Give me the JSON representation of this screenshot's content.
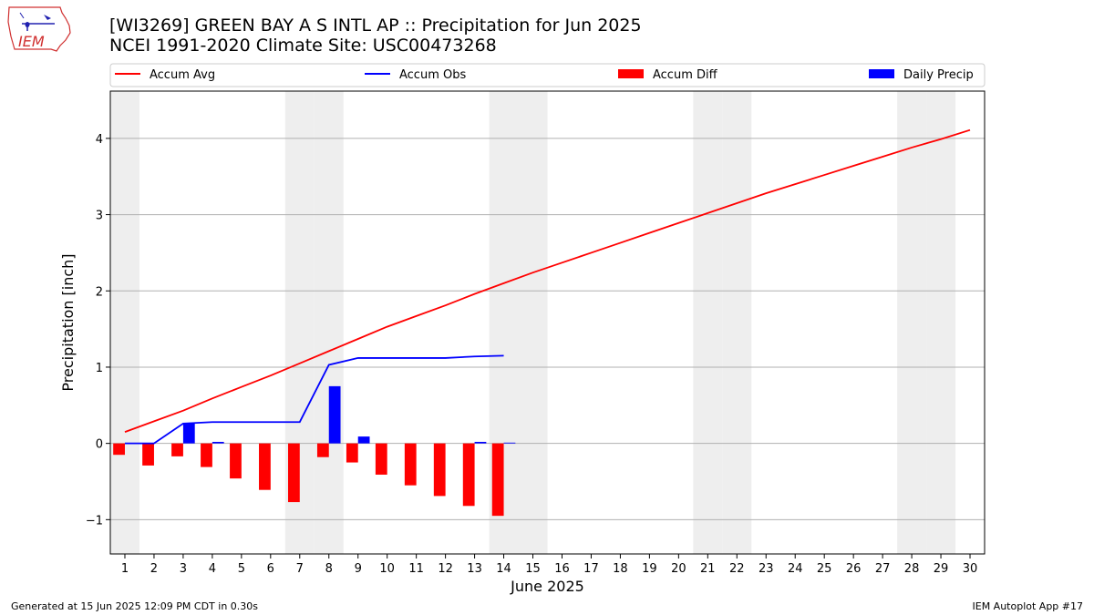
{
  "header": {
    "title_line1": "[WI3269] GREEN BAY A S INTL AP :: Precipitation for Jun 2025",
    "title_line2": "NCEI 1991-2020 Climate Site: USC00473268",
    "logo_text": "IEM"
  },
  "footer": {
    "left": "Generated at 15 Jun 2025 12:09 PM CDT in 0.30s",
    "right": "IEM Autoplot App #17"
  },
  "colors": {
    "accum_avg": "#ff0000",
    "accum_obs": "#0000ff",
    "accum_diff": "#ff0000",
    "daily_precip": "#0000ff",
    "weekend_shade": "#eeeeee",
    "grid": "#b0b0b0"
  },
  "chart_data": {
    "type": "line",
    "xlabel": "June 2025",
    "ylabel": "Precipitation [inch]",
    "xlim": [
      0.5,
      30.5
    ],
    "ylim": [
      -1.45,
      4.62
    ],
    "yticks": [
      -1,
      0,
      1,
      2,
      3,
      4
    ],
    "ytick_labels": [
      "−1",
      "0",
      "1",
      "2",
      "3",
      "4"
    ],
    "xticks": [
      1,
      2,
      3,
      4,
      5,
      6,
      7,
      8,
      9,
      10,
      11,
      12,
      13,
      14,
      15,
      16,
      17,
      18,
      19,
      20,
      21,
      22,
      23,
      24,
      25,
      26,
      27,
      28,
      29,
      30
    ],
    "grid": "horizontal",
    "legend_position": "top",
    "weekend_days": [
      1,
      7,
      8,
      14,
      15,
      21,
      22,
      28,
      29
    ],
    "series": [
      {
        "name": "Accum Avg",
        "kind": "line",
        "x": [
          1,
          2,
          3,
          4,
          5,
          6,
          7,
          8,
          9,
          10,
          11,
          12,
          13,
          14,
          15,
          16,
          17,
          18,
          19,
          20,
          21,
          22,
          23,
          24,
          25,
          26,
          27,
          28,
          29,
          30
        ],
        "values": [
          0.15,
          0.29,
          0.43,
          0.59,
          0.74,
          0.89,
          1.05,
          1.21,
          1.37,
          1.53,
          1.67,
          1.81,
          1.96,
          2.1,
          2.24,
          2.37,
          2.5,
          2.63,
          2.76,
          2.89,
          3.02,
          3.15,
          3.28,
          3.4,
          3.52,
          3.64,
          3.76,
          3.88,
          3.99,
          4.11
        ]
      },
      {
        "name": "Accum Obs",
        "kind": "line",
        "x": [
          1,
          2,
          3,
          4,
          5,
          6,
          7,
          8,
          9,
          10,
          11,
          12,
          13,
          14
        ],
        "values": [
          0.0,
          0.0,
          0.26,
          0.28,
          0.28,
          0.28,
          0.28,
          1.03,
          1.12,
          1.12,
          1.12,
          1.12,
          1.14,
          1.15
        ]
      },
      {
        "name": "Accum Diff",
        "kind": "bar",
        "x": [
          1,
          2,
          3,
          4,
          5,
          6,
          7,
          8,
          9,
          10,
          11,
          12,
          13,
          14
        ],
        "values": [
          -0.15,
          -0.29,
          -0.17,
          -0.31,
          -0.46,
          -0.61,
          -0.77,
          -0.18,
          -0.25,
          -0.41,
          -0.55,
          -0.69,
          -0.82,
          -0.95
        ]
      },
      {
        "name": "Daily Precip",
        "kind": "bar",
        "x": [
          1,
          2,
          3,
          4,
          5,
          6,
          7,
          8,
          9,
          10,
          11,
          12,
          13,
          14
        ],
        "values": [
          0,
          0,
          0.26,
          0.02,
          0,
          0,
          0,
          0.75,
          0.09,
          0,
          0,
          0,
          0.02,
          0.01
        ]
      }
    ]
  }
}
